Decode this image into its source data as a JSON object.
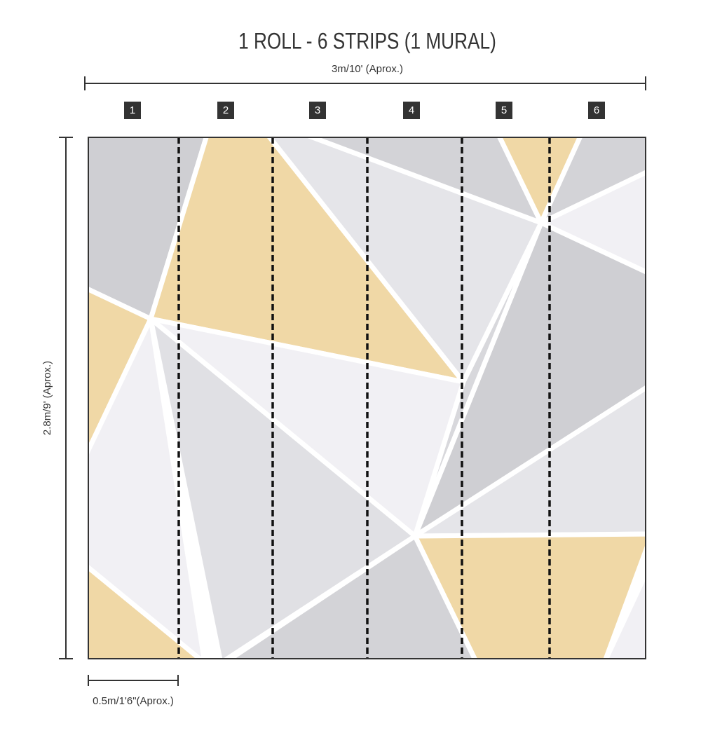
{
  "title": "1 ROLL - 6 STRIPS (1 MURAL)",
  "width_label": "3m/10' (Aprox.)",
  "height_label": "2.8m/9' (Aprox.)",
  "strip_width_label": "0.5m/1'6\"(Aprox.)",
  "strips": [
    "1",
    "2",
    "3",
    "4",
    "5",
    "6"
  ]
}
